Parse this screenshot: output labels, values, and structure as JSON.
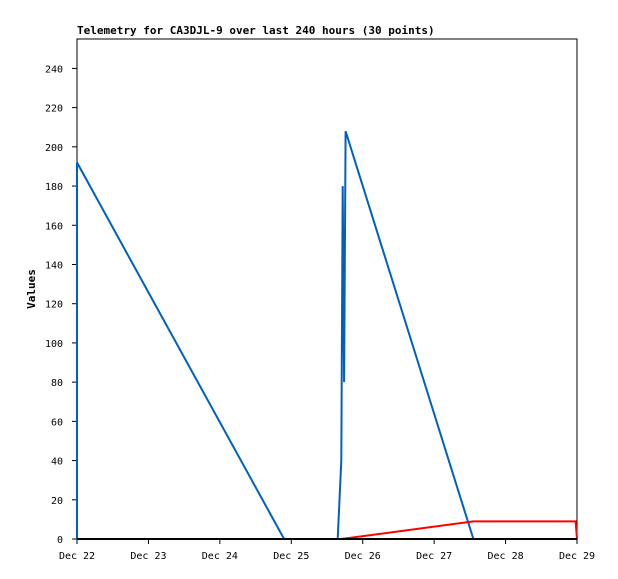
{
  "chart_data": {
    "type": "line",
    "title": "Telemetry for CA3DJL-9 over last 240 hours (30 points)",
    "xlabel": "",
    "ylabel": "Values",
    "x_ticks": [
      "Dec 22",
      "Dec 23",
      "Dec 24",
      "Dec 25",
      "Dec 26",
      "Dec 27",
      "Dec 28",
      "Dec 29"
    ],
    "xlim_days": [
      22,
      29
    ],
    "ylim": [
      0,
      255
    ],
    "y_ticks": [
      0,
      20,
      40,
      60,
      80,
      100,
      120,
      140,
      160,
      180,
      200,
      220,
      240
    ],
    "grid": false,
    "series": [
      {
        "color": "#0060c0",
        "points": [
          [
            22.0,
            0
          ],
          [
            22.0,
            192
          ],
          [
            24.9,
            0
          ],
          [
            25.65,
            0
          ],
          [
            25.7,
            40
          ],
          [
            25.72,
            180
          ],
          [
            25.74,
            80
          ],
          [
            25.76,
            208
          ],
          [
            27.55,
            0
          ],
          [
            29.0,
            0
          ]
        ]
      },
      {
        "color": "#ff0000",
        "points": [
          [
            22.0,
            0
          ],
          [
            25.7,
            0
          ],
          [
            27.55,
            9
          ],
          [
            28.98,
            9
          ],
          [
            29.0,
            0
          ]
        ]
      },
      {
        "color": "#000000",
        "points": [
          [
            22.0,
            0
          ],
          [
            29.0,
            0
          ]
        ]
      }
    ]
  }
}
